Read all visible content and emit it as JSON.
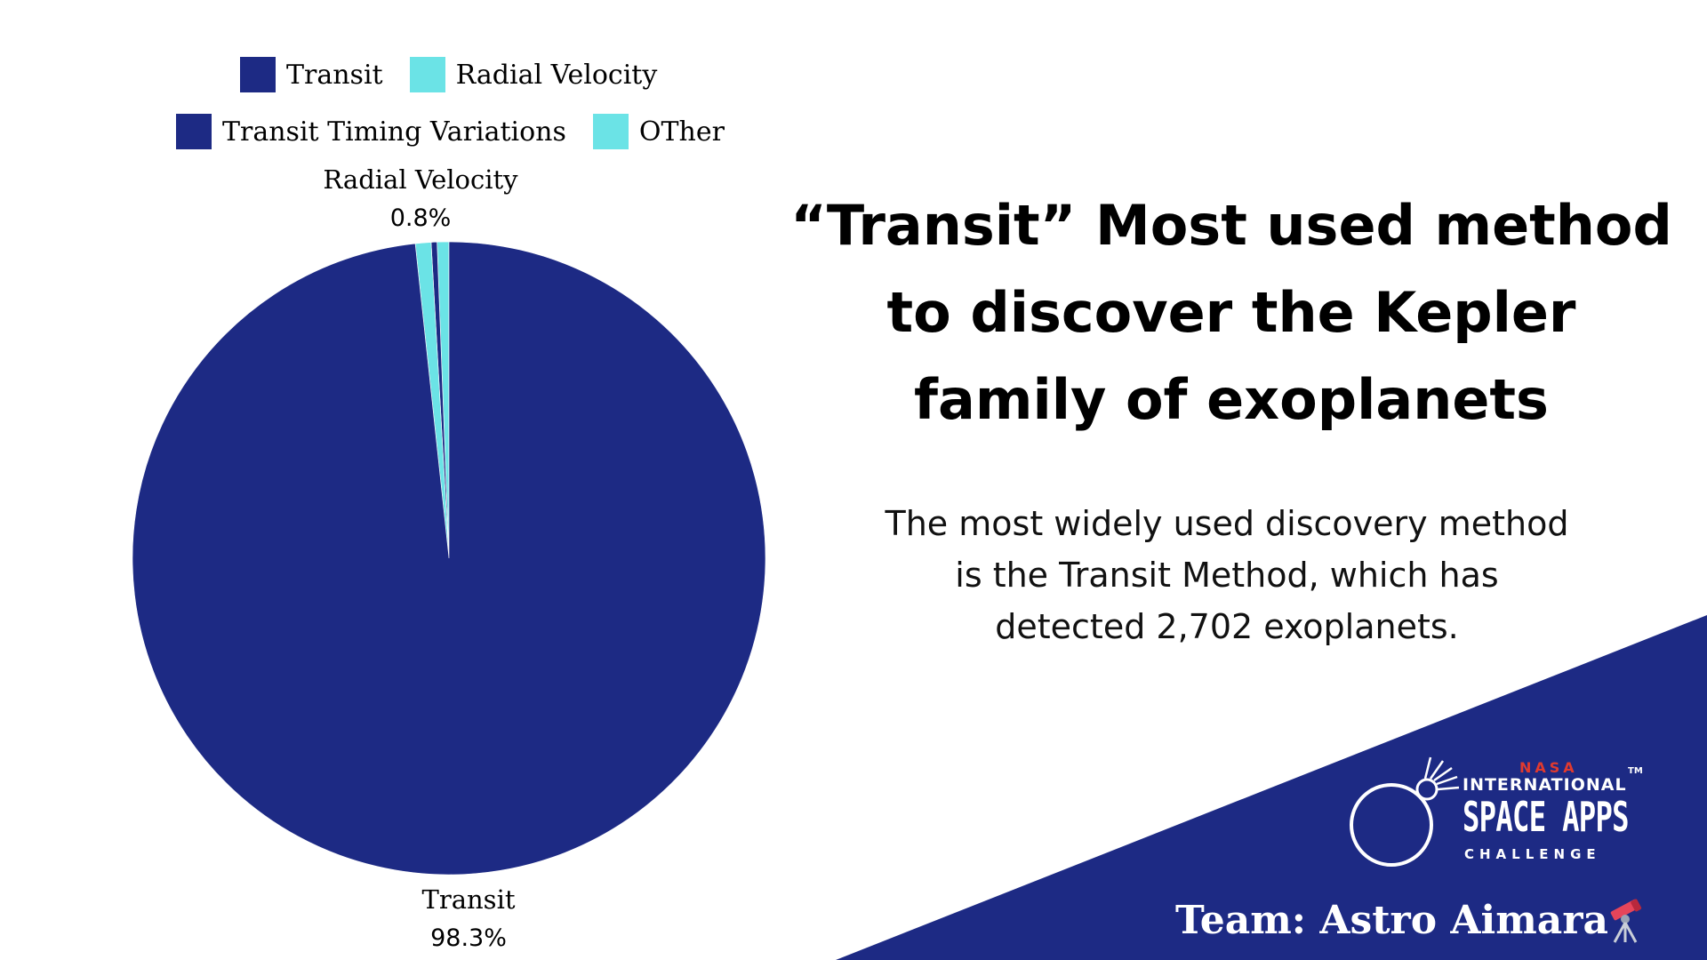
{
  "colors": {
    "navy": "#1d2a84",
    "cyan": "#6be3e6",
    "white": "#ffffff",
    "nasa_red": "#e03a2f"
  },
  "chart_data": {
    "type": "pie",
    "legend": {
      "position": "top",
      "entries": [
        {
          "label": "Transit",
          "color": "#1d2a84"
        },
        {
          "label": "Radial Velocity",
          "color": "#6be3e6"
        },
        {
          "label": "Transit Timing Variations",
          "color": "#1d2a84"
        },
        {
          "label": "OTher",
          "color": "#6be3e6"
        }
      ]
    },
    "slices": [
      {
        "label": "Transit",
        "value": 98.3,
        "display_value": "98.3%",
        "color": "#1d2a84"
      },
      {
        "label": "Radial Velocity",
        "value": 0.8,
        "display_value": "0.8%",
        "color": "#6be3e6"
      },
      {
        "label": "Transit Timing Variations",
        "value": 0.3,
        "color": "#1d2a84"
      },
      {
        "label": "OTher",
        "value": 0.6,
        "color": "#6be3e6"
      }
    ]
  },
  "headline": [
    "“Transit” Most used method",
    "to discover the Kepler",
    "family of exoplanets"
  ],
  "body": [
    "The most widely used discovery method",
    "is the Transit Method, which has",
    "detected 2,702 exoplanets."
  ],
  "logo": {
    "nasa": "NASA",
    "international": "INTERNATIONAL",
    "tm": "TM",
    "space_apps": "SPACE APPS",
    "challenge": "CHALLENGE"
  },
  "team": "Team: Astro Aimara",
  "team_icon": "telescope-icon"
}
